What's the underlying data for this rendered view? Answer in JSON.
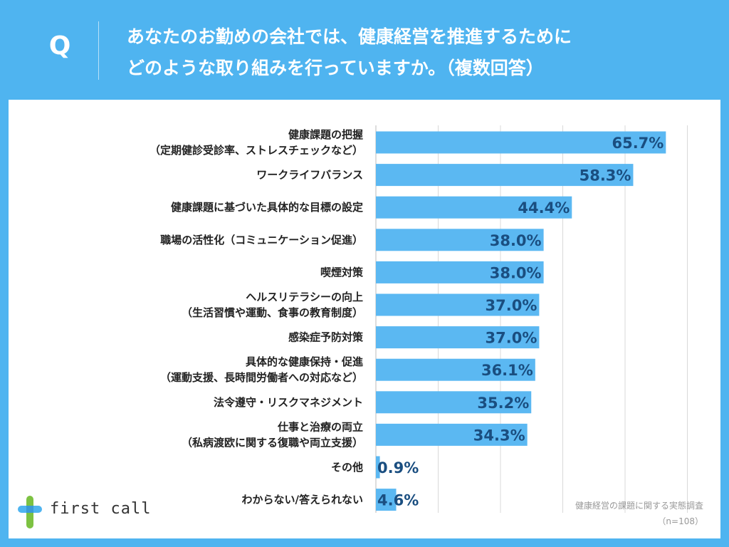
{
  "header": {
    "q_mark": "Q",
    "question_line1": "あなたのお勤めの会社では、健康経営を推進するために",
    "question_line2": "どのような取り組みを行っていますか。（複数回答）"
  },
  "logo": {
    "text": "first call",
    "icon": "cross-logo-icon"
  },
  "source": {
    "line1": "健康経営の課題に関する実態調査",
    "line2": "（n=108）"
  },
  "colors": {
    "background": "#4FB4F0",
    "bar": "#5BB8F2",
    "value_text": "#1A4E80"
  },
  "chart_data": {
    "type": "bar",
    "orientation": "horizontal",
    "categories": [
      [
        "健康課題の把握",
        "（定期健診受診率、ストレスチェックなど）"
      ],
      [
        "ワークライフバランス"
      ],
      [
        "健康課題に基づいた具体的な目標の設定"
      ],
      [
        "職場の活性化（コミュニケーション促進）"
      ],
      [
        "喫煙対策"
      ],
      [
        "ヘルスリテラシーの向上",
        "（生活習慣や運動、食事の教育制度）"
      ],
      [
        "感染症予防対策"
      ],
      [
        "具体的な健康保持・促進",
        "（運動支援、長時間労働者への対応など）"
      ],
      [
        "法令遵守・リスクマネジメント"
      ],
      [
        "仕事と治療の両立",
        "（私病渡欧に関する復職や両立支援）"
      ],
      [
        "その他"
      ],
      [
        "わからない/答えられない"
      ]
    ],
    "values": [
      65.7,
      58.3,
      44.4,
      38.0,
      38.0,
      37.0,
      37.0,
      36.1,
      35.2,
      34.3,
      0.9,
      4.6
    ],
    "value_labels": [
      "65.7%",
      "58.3%",
      "44.4%",
      "38.0%",
      "38.0%",
      "37.0%",
      "37.0%",
      "36.1%",
      "35.2%",
      "34.3%",
      "0.9%",
      "4.6%"
    ],
    "xlim": [
      0,
      70
    ],
    "grid": true,
    "title": "",
    "xlabel": "",
    "ylabel": ""
  }
}
